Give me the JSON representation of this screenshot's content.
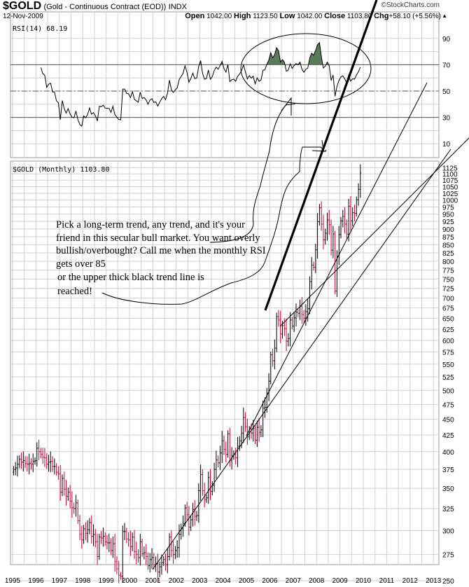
{
  "header": {
    "symbol": "$GOLD",
    "description": "(Gold - Continuous Contract (EOD))",
    "exchange": "INDX",
    "date": "12-Nov-2009",
    "open_label": "Open",
    "open": "1042.00",
    "high_label": "High",
    "high": "1123.50",
    "low_label": "Low",
    "low": "1042.00",
    "close_label": "Close",
    "close": "1103.80",
    "chg_label": "Chg",
    "chg": "+58.10 (+5.56%)",
    "brand": "©StockCharts.com"
  },
  "annotation": {
    "text1": "Pick a long-term trend, any trend, and it's your friend in this secular bull market. You want overly bullish/overbought? Call me when the monthly RSI gets over 85",
    "text2": "or the upper thick black trend line is reached!"
  },
  "colors": {
    "up": "#000000",
    "down": "#cc0033",
    "rsi_fill": "#5a7a5a",
    "grid": "#d0d0d0"
  },
  "chart_data": [
    {
      "type": "line",
      "title": "RSI(14) 68.19",
      "indicator": "RSI(14)",
      "last_value": 68.19,
      "ylim": [
        0,
        100
      ],
      "yticks": [
        10,
        30,
        50,
        70,
        90
      ],
      "reference_lines": [
        30,
        50,
        70
      ],
      "fill_above": 70,
      "grid": true
    },
    {
      "type": "ohlc",
      "title": "$GOLD (Monthly) 1103.80",
      "scale": "log",
      "ylim": [
        245,
        1140
      ],
      "yticks": [
        250,
        275,
        300,
        325,
        350,
        375,
        400,
        425,
        450,
        475,
        500,
        525,
        550,
        575,
        600,
        625,
        650,
        675,
        700,
        725,
        750,
        775,
        800,
        825,
        850,
        875,
        900,
        925,
        950,
        975,
        1000,
        1025,
        1050,
        1075,
        1100,
        1125
      ],
      "xticks": [
        "1995",
        "1996",
        "1997",
        "1998",
        "1999",
        "2000",
        "2001",
        "2002",
        "2003",
        "2004",
        "2005",
        "2006",
        "2007",
        "2008",
        "2009",
        "2010",
        "2011",
        "2012",
        "2013"
      ],
      "xlim": [
        "1995-01",
        "2013-12"
      ],
      "grid": true,
      "start": "1995-01",
      "frequency": "monthly",
      "close": [
        375,
        377,
        382,
        389,
        385,
        387,
        383,
        382,
        383,
        382,
        386,
        387,
        405,
        400,
        396,
        392,
        391,
        382,
        385,
        386,
        379,
        379,
        371,
        369,
        345,
        363,
        349,
        340,
        345,
        334,
        326,
        325,
        332,
        311,
        296,
        290,
        302,
        297,
        301,
        309,
        294,
        296,
        288,
        273,
        293,
        292,
        294,
        288,
        287,
        287,
        279,
        286,
        268,
        261,
        255,
        254,
        299,
        299,
        291,
        290,
        283,
        293,
        278,
        275,
        272,
        288,
        276,
        277,
        273,
        264,
        270,
        272,
        265,
        266,
        258,
        263,
        267,
        270,
        265,
        273,
        293,
        279,
        275,
        279,
        282,
        296,
        302,
        308,
        326,
        318,
        304,
        312,
        324,
        316,
        317,
        347,
        368,
        347,
        336,
        338,
        364,
        346,
        354,
        375,
        388,
        384,
        398,
        416,
        403,
        396,
        427,
        387,
        394,
        396,
        391,
        408,
        416,
        428,
        453,
        438,
        422,
        434,
        428,
        435,
        417,
        437,
        429,
        433,
        469,
        470,
        495,
        517,
        569,
        557,
        583,
        654,
        646,
        614,
        633,
        626,
        598,
        604,
        646,
        632,
        651,
        665,
        662,
        679,
        659,
        650,
        666,
        673,
        743,
        789,
        783,
        834,
        924,
        972,
        916,
        865,
        886,
        930,
        914,
        833,
        884,
        718,
        815,
        882,
        927,
        942,
        916,
        883,
        978,
        927,
        955,
        953,
        1001,
        1040,
        1103.8
      ],
      "trendlines": [
        "thick upper trend line from 2006 high",
        "trend line from 2001 low",
        "trend line from 2005 low",
        "trend line from 2007 low"
      ]
    }
  ]
}
